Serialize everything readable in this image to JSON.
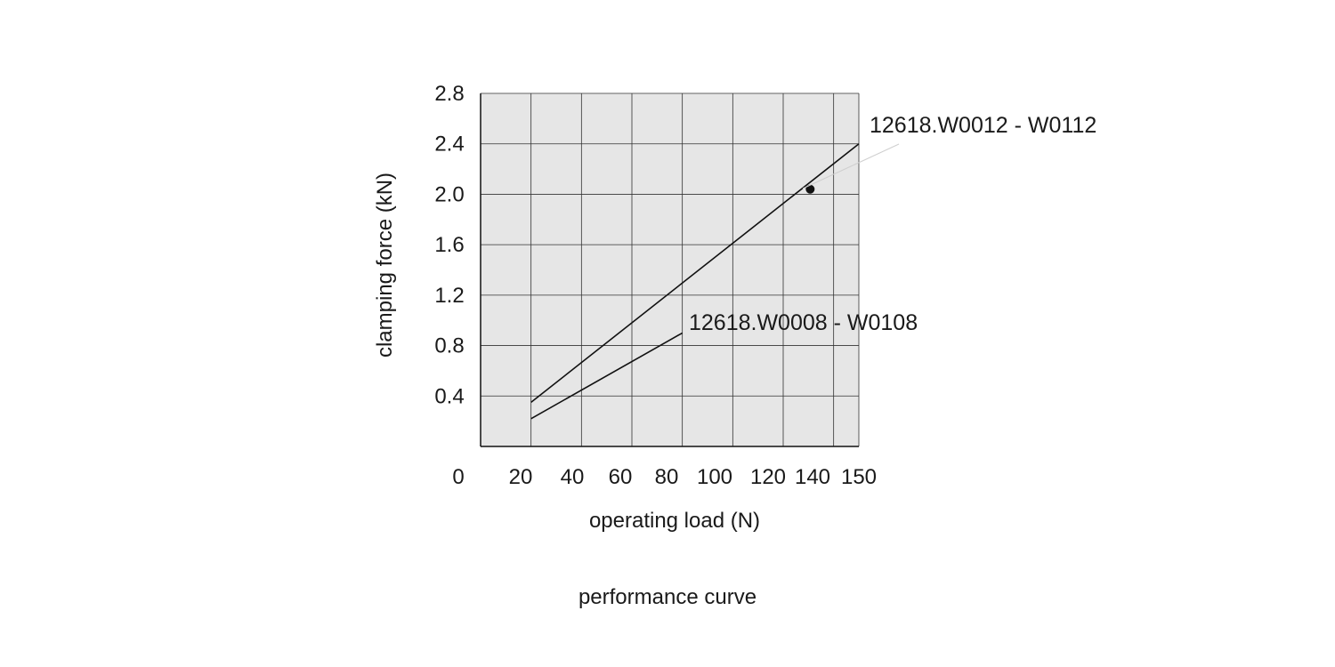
{
  "caption": "performance curve",
  "chart_data": {
    "type": "line",
    "title": "",
    "xlabel": "operating load (N)",
    "ylabel": "clamping force (kN)",
    "x_ticks": [
      "0",
      "20",
      "40",
      "60",
      "80",
      "100",
      "120",
      "140",
      "150"
    ],
    "y_ticks": [
      "0.4",
      "0.8",
      "1.2",
      "1.6",
      "2.0",
      "2.4",
      "2.8"
    ],
    "y_tick_values": [
      0.4,
      0.8,
      1.2,
      1.6,
      2.0,
      2.4,
      2.8
    ],
    "grid": true,
    "series": [
      {
        "name": "12618.W0012 - W0112",
        "x": [
          20,
          150
        ],
        "y": [
          0.35,
          2.4
        ],
        "marker": {
          "x": 130,
          "y": 2.04
        }
      },
      {
        "name": "12618.W0008 - W0108",
        "x": [
          20,
          80
        ],
        "y": [
          0.22,
          0.9
        ]
      }
    ],
    "colors": {
      "plot_background": "#e6e6e6",
      "grid": "#333333",
      "line": "#111111"
    }
  }
}
